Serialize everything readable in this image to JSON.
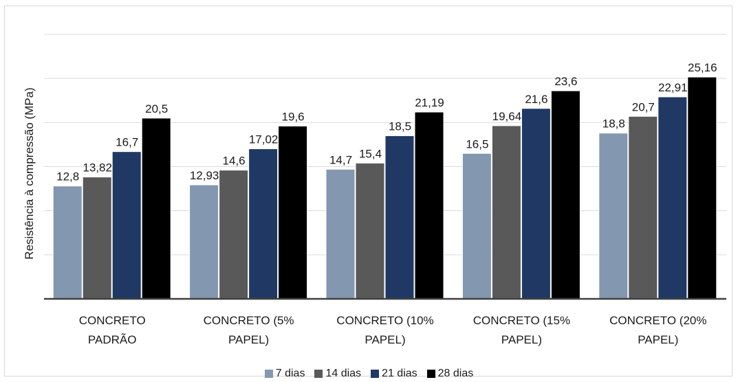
{
  "chart_data": {
    "type": "bar",
    "ylabel": "Resistência à compressão (MPa)",
    "ylim": [
      0,
      30
    ],
    "grid": true,
    "legend_position": "bottom",
    "categories": [
      [
        "CONCRETO",
        "PADRÃO"
      ],
      [
        "CONCRETO (5%",
        "PAPEL)"
      ],
      [
        "CONCRETO (10%",
        "PAPEL)"
      ],
      [
        "CONCRETO (15%",
        "PAPEL)"
      ],
      [
        "CONCRETO (20%",
        "PAPEL)"
      ]
    ],
    "series": [
      {
        "name": "7 dias",
        "color": "#8497b0",
        "values": [
          12.8,
          12.93,
          14.7,
          16.5,
          18.8
        ],
        "labels": [
          "12,8",
          "12,93",
          "14,7",
          "16,5",
          "18,8"
        ]
      },
      {
        "name": "14 dias",
        "color": "#595959",
        "values": [
          13.82,
          14.6,
          15.4,
          19.64,
          20.7
        ],
        "labels": [
          "13,82",
          "14,6",
          "15,4",
          "19,64",
          "20,7"
        ]
      },
      {
        "name": "21 dias",
        "color": "#1f3864",
        "values": [
          16.7,
          17.02,
          18.5,
          21.6,
          22.91
        ],
        "labels": [
          "16,7",
          "17,02",
          "18,5",
          "21,6",
          "22,91"
        ]
      },
      {
        "name": "28 dias",
        "color": "#000000",
        "values": [
          20.5,
          19.6,
          21.19,
          23.6,
          25.16
        ],
        "labels": [
          "20,5",
          "19,6",
          "21,19",
          "23,6",
          "25,16"
        ]
      }
    ]
  }
}
